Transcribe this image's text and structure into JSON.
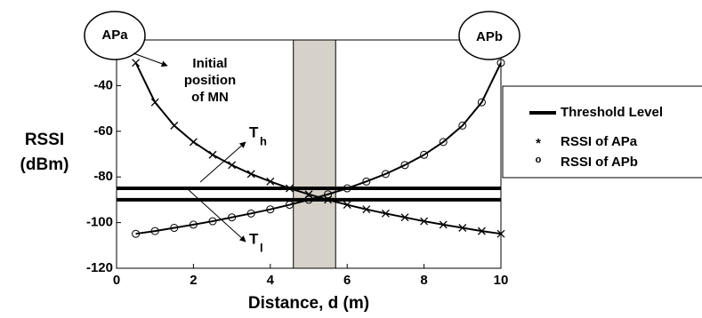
{
  "chart_data": {
    "type": "line",
    "xlabel": "Distance, d (m)",
    "ylabel": [
      "RSSI",
      "(dBm)"
    ],
    "x": [
      0.5,
      1,
      1.5,
      2,
      2.5,
      3,
      3.5,
      4,
      4.5,
      5,
      5.5,
      6,
      6.5,
      7,
      7.5,
      8,
      8.5,
      9,
      9.5,
      10
    ],
    "series": [
      {
        "name": "RSSI of APa",
        "marker": "x",
        "legend_symbol": "*",
        "color": "#000000",
        "values": [
          -30,
          -47.3,
          -57.5,
          -64.7,
          -70.3,
          -74.8,
          -78.7,
          -82.0,
          -85.0,
          -87.6,
          -90.0,
          -92.2,
          -94.2,
          -96.0,
          -97.7,
          -99.4,
          -100.9,
          -102.3,
          -103.7,
          -104.9
        ]
      },
      {
        "name": "RSSI of APb",
        "marker": "o",
        "legend_symbol": "o",
        "color": "#000000",
        "values": [
          -104.9,
          -103.7,
          -102.3,
          -100.9,
          -99.4,
          -97.7,
          -96.0,
          -94.2,
          -92.2,
          -90.0,
          -87.6,
          -85.0,
          -82.0,
          -78.7,
          -74.8,
          -70.3,
          -64.7,
          -57.5,
          -47.3,
          -30
        ]
      }
    ],
    "thresholds": {
      "name": "Threshold Level",
      "color": "#000000",
      "values": [
        -85,
        -90
      ]
    },
    "shaded_region": {
      "x": [
        4.6,
        5.7
      ],
      "color": "#d6d2ca"
    },
    "xlim": [
      0,
      10
    ],
    "xticks": [
      0,
      2,
      4,
      6,
      8,
      10
    ],
    "ylim": [
      -120,
      -20
    ],
    "yticks": [
      -120,
      -100,
      -80,
      -60,
      -40
    ],
    "annotations": {
      "ap_a": "APa",
      "ap_b": "APb",
      "initial": [
        "Initial",
        "position",
        "of MN"
      ],
      "t_h": {
        "text": "T",
        "subscript": "h"
      },
      "t_l": {
        "text": "T",
        "subscript": "l"
      }
    }
  }
}
